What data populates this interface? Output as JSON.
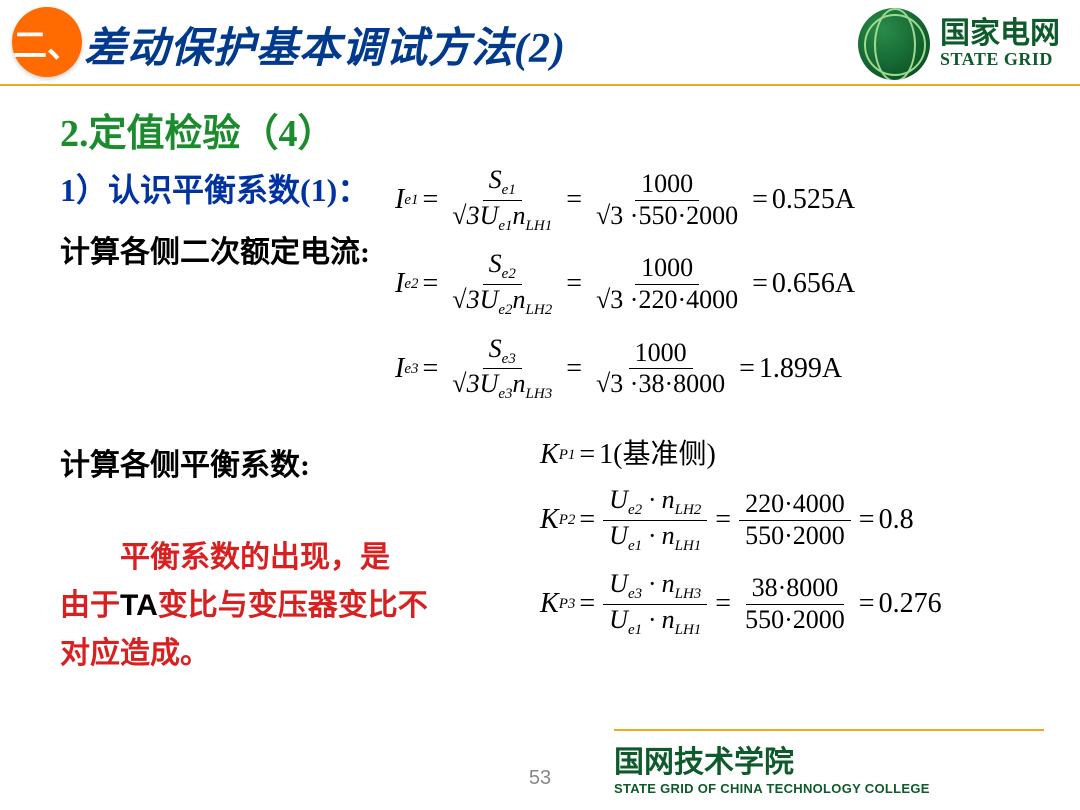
{
  "header": {
    "section_label": "二、",
    "title": "差动保护基本调试方法(2)",
    "brand_cn": "国家电网",
    "brand_en": "STATE GRID"
  },
  "content": {
    "h2": "2.定值检验（4）",
    "h3": "1）认识平衡系数(1)：",
    "calc_label_1": "计算各侧二次额定电流:",
    "calc_label_2": "计算各侧平衡系数:",
    "note_indent": "　　平衡系数的出现，是",
    "note_line2_a": "由于",
    "note_line2_b": "TA",
    "note_line2_c": "变比与变压器变比不",
    "note_line3": "对应造成。"
  },
  "formulas": {
    "ie1": {
      "lhs": "I",
      "lhs_sub": "e1",
      "num1": "S",
      "num1_sub": "e1",
      "den1_a": "3",
      "den1_b": "U",
      "den1_b_sub": "e1",
      "den1_c": "n",
      "den1_c_sub": "LH1",
      "num2": "1000",
      "den2": "3 ·550·2000",
      "result": "0.525A"
    },
    "ie2": {
      "lhs": "I",
      "lhs_sub": "e2",
      "num1": "S",
      "num1_sub": "e2",
      "den1_b_sub": "e2",
      "den1_c_sub": "LH2",
      "num2": "1000",
      "den2": "3 ·220·4000",
      "result": "0.656A"
    },
    "ie3": {
      "lhs": "I",
      "lhs_sub": "e3",
      "num1": "S",
      "num1_sub": "e3",
      "den1_b_sub": "e3",
      "den1_c_sub": "LH3",
      "num2": "1000",
      "den2": "3 ·38·8000",
      "result": "1.899A"
    },
    "kp1": {
      "lhs": "K",
      "lhs_sub": "P1",
      "rhs": "1",
      "note": "(基准侧)"
    },
    "kp2": {
      "lhs_sub": "P2",
      "num1_a": "U",
      "num1_a_sub": "e2",
      "num1_b": "n",
      "num1_b_sub": "LH2",
      "den1_a_sub": "e1",
      "den1_b_sub": "LH1",
      "num2": "220·4000",
      "den2": "550·2000",
      "result": "0.8"
    },
    "kp3": {
      "lhs_sub": "P3",
      "num1_a_sub": "e3",
      "num1_b_sub": "LH3",
      "num2": "38·8000",
      "den2": "550·2000",
      "result": "0.276"
    }
  },
  "footer": {
    "page": "53",
    "brand_cn": "国网技术学院",
    "brand_en": "STATE GRID OF CHINA TECHNOLOGY COLLEGE"
  },
  "style": {
    "accent_orange": "#f5a623",
    "title_blue": "#003a8c",
    "green_heading": "#1a8c2e",
    "sub_blue": "#0033a0",
    "note_red": "#d92020",
    "brand_green": "#0d5a2a",
    "background": "#ffffff"
  }
}
